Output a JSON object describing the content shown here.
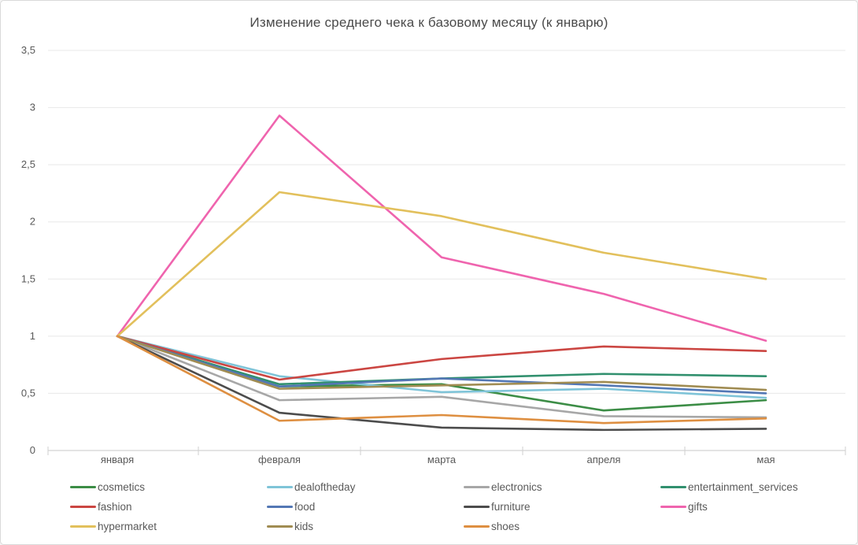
{
  "chart_data": {
    "type": "line",
    "title": "Изменение среднего чека к базовому месяцу (к январю)",
    "xlabel": "",
    "ylabel": "",
    "categories": [
      "января",
      "февраля",
      "марта",
      "апреля",
      "мая"
    ],
    "y_ticks": [
      "3,5",
      "3",
      "2,5",
      "2",
      "1,5",
      "1",
      "0,5",
      "0"
    ],
    "y_tick_values": [
      3.5,
      3,
      2.5,
      2,
      1.5,
      1,
      0.5,
      0
    ],
    "ylim": [
      0,
      3.5
    ],
    "grid": true,
    "legend_position": "bottom",
    "series": [
      {
        "name": "cosmetics",
        "color": "#3c8d46",
        "values": [
          1,
          0.56,
          0.58,
          0.35,
          0.44
        ]
      },
      {
        "name": "dealoftheday",
        "color": "#7fc4d8",
        "values": [
          1,
          0.65,
          0.51,
          0.54,
          0.46
        ]
      },
      {
        "name": "electronics",
        "color": "#a7a7a7",
        "values": [
          1,
          0.44,
          0.47,
          0.3,
          0.29
        ]
      },
      {
        "name": "entertainment_services",
        "color": "#31906e",
        "values": [
          1,
          0.58,
          0.63,
          0.67,
          0.65
        ]
      },
      {
        "name": "fashion",
        "color": "#cb4642",
        "values": [
          1,
          0.62,
          0.8,
          0.91,
          0.87
        ]
      },
      {
        "name": "food",
        "color": "#5377b4",
        "values": [
          1,
          0.56,
          0.63,
          0.57,
          0.5
        ]
      },
      {
        "name": "furniture",
        "color": "#4c4c4c",
        "values": [
          1,
          0.33,
          0.2,
          0.18,
          0.19
        ]
      },
      {
        "name": "gifts",
        "color": "#ef64ae",
        "values": [
          1,
          2.93,
          1.69,
          1.37,
          0.96
        ]
      },
      {
        "name": "hypermarket",
        "color": "#e2c05c",
        "values": [
          1,
          2.26,
          2.05,
          1.73,
          1.5
        ]
      },
      {
        "name": "kids",
        "color": "#a08c52",
        "values": [
          1,
          0.54,
          0.57,
          0.6,
          0.53
        ]
      },
      {
        "name": "shoes",
        "color": "#de8f41",
        "values": [
          1,
          0.26,
          0.31,
          0.24,
          0.28
        ]
      }
    ]
  }
}
